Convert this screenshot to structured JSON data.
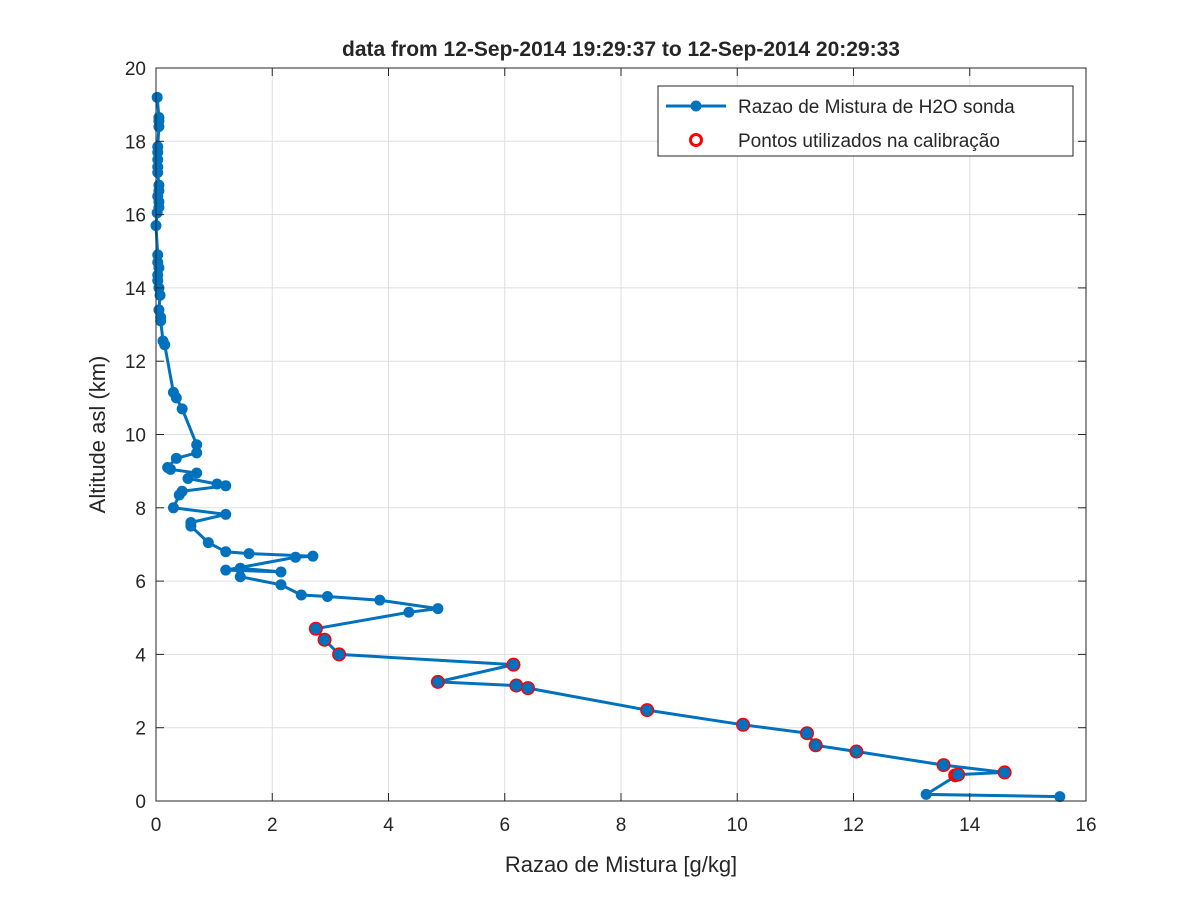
{
  "chart_data": {
    "type": "line",
    "title": "data from 12-Sep-2014 19:29:37 to 12-Sep-2014 20:29:33",
    "xlabel": "Razao de Mistura [g/kg]",
    "ylabel": "Altitude asl (km)",
    "xlim": [
      0,
      16
    ],
    "ylim": [
      0,
      20
    ],
    "xticks": [
      0,
      2,
      4,
      6,
      8,
      10,
      12,
      14,
      16
    ],
    "yticks": [
      0,
      2,
      4,
      6,
      8,
      10,
      12,
      14,
      16,
      18,
      20
    ],
    "grid": true,
    "legend_position": "top-right",
    "series": [
      {
        "name": "Razao de Mistura de H2O sonda",
        "style": "line-with-dot-markers",
        "color": "#0072bd",
        "points": [
          [
            15.55,
            0.12
          ],
          [
            13.25,
            0.18
          ],
          [
            13.8,
            0.72
          ],
          [
            14.6,
            0.78
          ],
          [
            13.55,
            0.98
          ],
          [
            12.05,
            1.35
          ],
          [
            11.35,
            1.52
          ],
          [
            11.2,
            1.85
          ],
          [
            10.1,
            2.08
          ],
          [
            8.45,
            2.48
          ],
          [
            6.4,
            3.08
          ],
          [
            6.2,
            3.15
          ],
          [
            4.85,
            3.25
          ],
          [
            6.15,
            3.72
          ],
          [
            3.15,
            4.0
          ],
          [
            2.9,
            4.4
          ],
          [
            2.75,
            4.7
          ],
          [
            4.35,
            5.15
          ],
          [
            4.85,
            5.25
          ],
          [
            3.85,
            5.48
          ],
          [
            2.95,
            5.58
          ],
          [
            2.5,
            5.62
          ],
          [
            2.15,
            5.9
          ],
          [
            1.45,
            6.12
          ],
          [
            1.45,
            6.35
          ],
          [
            2.15,
            6.25
          ],
          [
            1.2,
            6.3
          ],
          [
            2.4,
            6.65
          ],
          [
            2.7,
            6.68
          ],
          [
            1.6,
            6.75
          ],
          [
            1.2,
            6.8
          ],
          [
            0.9,
            7.05
          ],
          [
            0.6,
            7.5
          ],
          [
            0.6,
            7.6
          ],
          [
            1.2,
            7.82
          ],
          [
            0.3,
            8.0
          ],
          [
            0.4,
            8.35
          ],
          [
            0.45,
            8.45
          ],
          [
            1.2,
            8.6
          ],
          [
            1.05,
            8.65
          ],
          [
            0.55,
            8.8
          ],
          [
            0.7,
            8.95
          ],
          [
            0.25,
            9.05
          ],
          [
            0.2,
            9.1
          ],
          [
            0.35,
            9.35
          ],
          [
            0.7,
            9.5
          ],
          [
            0.7,
            9.72
          ],
          [
            0.45,
            10.7
          ],
          [
            0.35,
            11.0
          ],
          [
            0.3,
            11.15
          ],
          [
            0.15,
            12.45
          ],
          [
            0.12,
            12.55
          ],
          [
            0.08,
            13.1
          ],
          [
            0.08,
            13.2
          ],
          [
            0.05,
            13.4
          ],
          [
            0.07,
            13.8
          ],
          [
            0.05,
            14.0
          ],
          [
            0.03,
            14.2
          ],
          [
            0.03,
            14.35
          ],
          [
            0.05,
            14.55
          ],
          [
            0.03,
            14.7
          ],
          [
            0.03,
            14.9
          ],
          [
            0.0,
            15.7
          ],
          [
            0.02,
            16.05
          ],
          [
            0.05,
            16.2
          ],
          [
            0.05,
            16.35
          ],
          [
            0.03,
            16.5
          ],
          [
            0.05,
            16.65
          ],
          [
            0.05,
            16.8
          ],
          [
            0.03,
            17.15
          ],
          [
            0.03,
            17.3
          ],
          [
            0.03,
            17.5
          ],
          [
            0.03,
            17.7
          ],
          [
            0.03,
            17.85
          ],
          [
            0.05,
            18.4
          ],
          [
            0.05,
            18.55
          ],
          [
            0.05,
            18.65
          ],
          [
            0.02,
            19.2
          ]
        ]
      },
      {
        "name": "Pontos utilizados na calibração",
        "style": "open-circle-markers",
        "color": "#ff0000",
        "points": [
          [
            13.8,
            0.72
          ],
          [
            13.75,
            0.7
          ],
          [
            14.6,
            0.78
          ],
          [
            13.55,
            0.98
          ],
          [
            12.05,
            1.35
          ],
          [
            11.35,
            1.52
          ],
          [
            11.2,
            1.85
          ],
          [
            10.1,
            2.08
          ],
          [
            8.45,
            2.48
          ],
          [
            6.4,
            3.08
          ],
          [
            6.2,
            3.15
          ],
          [
            4.85,
            3.25
          ],
          [
            6.15,
            3.72
          ],
          [
            3.15,
            4.0
          ],
          [
            2.9,
            4.4
          ],
          [
            2.75,
            4.7
          ]
        ]
      }
    ]
  }
}
